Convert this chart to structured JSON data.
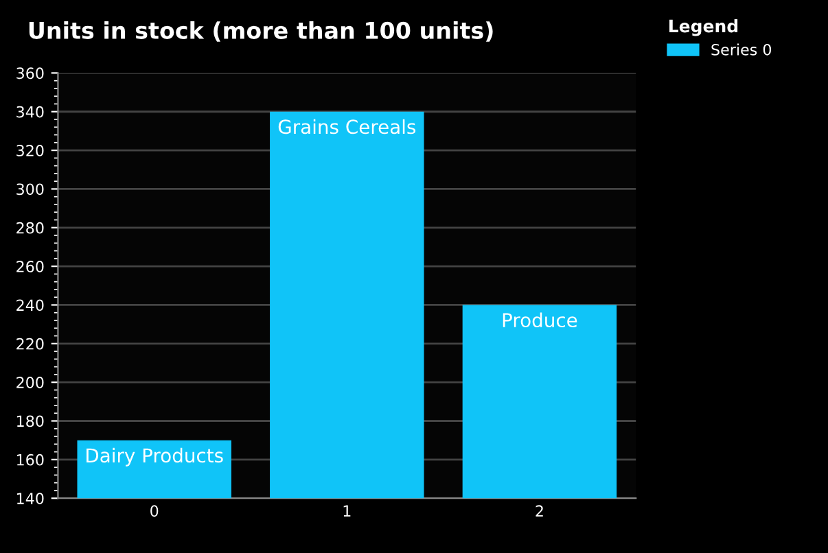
{
  "chart_data": {
    "type": "bar",
    "title": "Units in stock (more than 100 units)",
    "categories": [
      "0",
      "1",
      "2"
    ],
    "series": [
      {
        "name": "Series 0",
        "color": "#10c4f8",
        "values": [
          170,
          340,
          240
        ]
      }
    ],
    "legend_title": "Legend",
    "legend": "top right",
    "ylim": [
      140,
      360
    ],
    "yticks": [
      140,
      160,
      180,
      200,
      220,
      240,
      260,
      280,
      300,
      320,
      340,
      360
    ],
    "grid": "y",
    "annotations": [
      {
        "text": "Dairy Products",
        "x": "0",
        "y": 170
      },
      {
        "text": "Grains Cereals",
        "x": "1",
        "y": 340
      },
      {
        "text": "Produce",
        "x": "2",
        "y": 240
      }
    ]
  }
}
